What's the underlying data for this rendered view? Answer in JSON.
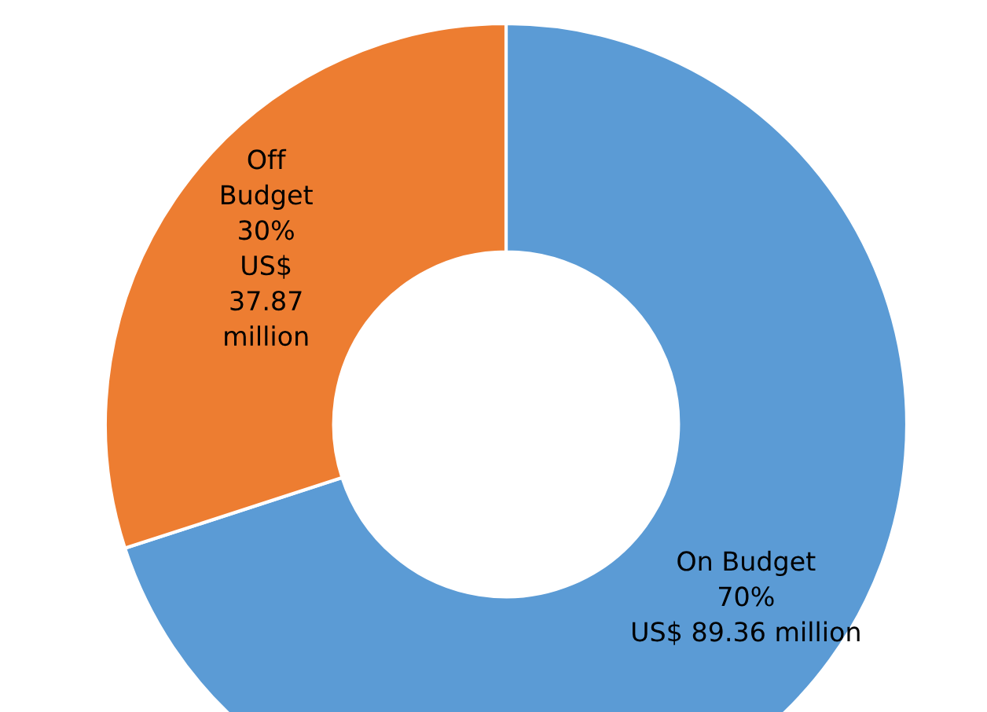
{
  "chart_data": {
    "type": "donut",
    "categories": [
      "On Budget",
      "Off\nBudget"
    ],
    "values": [
      70,
      30
    ],
    "value_labels": [
      "70%\nUS$ 89.36 million",
      "30%\nUS$\n37.87\nmillion"
    ],
    "colors": [
      "#5b9bd5",
      "#ed7d31"
    ],
    "legend": false
  }
}
